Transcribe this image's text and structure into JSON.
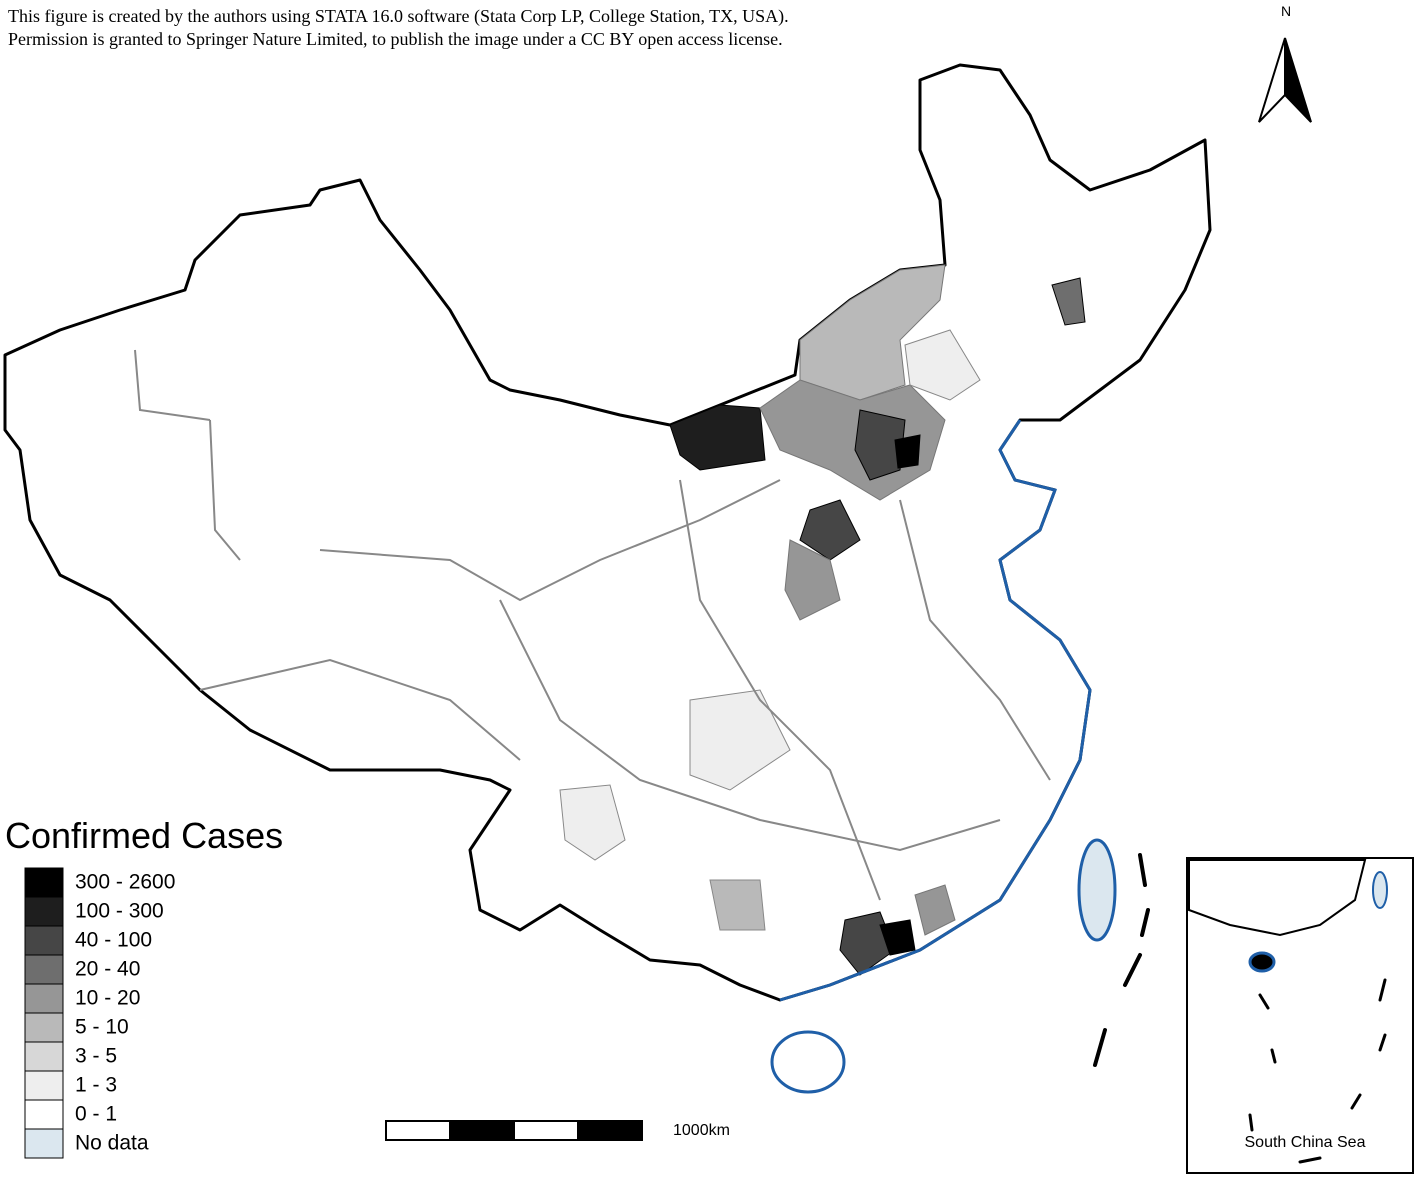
{
  "header": {
    "lines": [
      "This figure is created by the authors using STATA 16.0 software (Stata Corp LP, College Station, TX, USA).",
      "Permission is granted to Springer Nature Limited, to publish the image under a CC BY open access license."
    ]
  },
  "north_label": "N",
  "legend": {
    "title": "Confirmed Cases",
    "items": [
      {
        "label": "300 - 2600",
        "color": "#000000"
      },
      {
        "label": "100 - 300",
        "color": "#1e1e1e"
      },
      {
        "label": "40 - 100",
        "color": "#464646"
      },
      {
        "label": "20 - 40",
        "color": "#6e6e6e"
      },
      {
        "label": "10 - 20",
        "color": "#969696"
      },
      {
        "label": "5 - 10",
        "color": "#b9b9b9"
      },
      {
        "label": "3 - 5",
        "color": "#d7d7d7"
      },
      {
        "label": "1 - 3",
        "color": "#eeeeee"
      },
      {
        "label": "0 - 1",
        "color": "#ffffff"
      },
      {
        "label": "No data",
        "color": "#dbe7ef"
      }
    ]
  },
  "scale_bar": {
    "label": "1000km"
  },
  "inset": {
    "label": "South China Sea"
  }
}
